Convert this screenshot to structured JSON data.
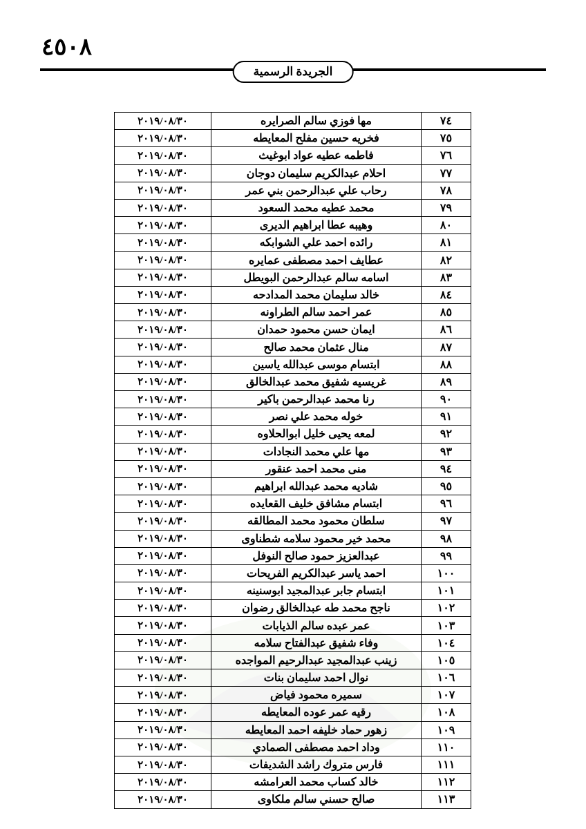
{
  "page_number": "٤٥٠٨",
  "header_title": "الجريدة الرسمية",
  "date_value": "٢٠١٩/٠٨/٣٠",
  "table": {
    "columns": [
      "num",
      "name",
      "date"
    ],
    "rows": [
      {
        "num": "٧٤",
        "name": "مها فوزي سالم الصرايره"
      },
      {
        "num": "٧٥",
        "name": "فخريه حسين مفلح المعايطه"
      },
      {
        "num": "٧٦",
        "name": "فاطمه عطيه عواد ابوغيث"
      },
      {
        "num": "٧٧",
        "name": "احلام عبدالكريم سليمان دوجان"
      },
      {
        "num": "٧٨",
        "name": "رحاب علي عبدالرحمن بني عمر"
      },
      {
        "num": "٧٩",
        "name": "محمد عطيه محمد السعود"
      },
      {
        "num": "٨٠",
        "name": "وهيبه عطا ابراهيم الديرى"
      },
      {
        "num": "٨١",
        "name": "رائده احمد علي الشوابكه"
      },
      {
        "num": "٨٢",
        "name": "عطايف احمد مصطفى عمايره"
      },
      {
        "num": "٨٣",
        "name": "اسامه سالم عبدالرحمن البويطل"
      },
      {
        "num": "٨٤",
        "name": "خالد سليمان محمد المدادحه"
      },
      {
        "num": "٨٥",
        "name": "عمر احمد سالم الطراونه"
      },
      {
        "num": "٨٦",
        "name": "ايمان حسن محمود حمدان"
      },
      {
        "num": "٨٧",
        "name": "منال عثمان محمد صالح"
      },
      {
        "num": "٨٨",
        "name": "ابتسام موسى عبدالله ياسين"
      },
      {
        "num": "٨٩",
        "name": "غريسيه شفيق محمد عبدالخالق"
      },
      {
        "num": "٩٠",
        "name": "رنا محمد عبدالرحمن باكير"
      },
      {
        "num": "٩١",
        "name": "خوله محمد علي نصر"
      },
      {
        "num": "٩٢",
        "name": "لمعه يحيى خليل ابوالحلاوه"
      },
      {
        "num": "٩٣",
        "name": "مها علي محمد النجادات"
      },
      {
        "num": "٩٤",
        "name": "منى محمد احمد عنقور"
      },
      {
        "num": "٩٥",
        "name": "شاديه محمد عبدالله ابراهيم"
      },
      {
        "num": "٩٦",
        "name": "ابتسام مشافق خليف القعايده"
      },
      {
        "num": "٩٧",
        "name": "سلطان محمود محمد المطالقه"
      },
      {
        "num": "٩٨",
        "name": "محمد خير محمود سلامه شطناوى"
      },
      {
        "num": "٩٩",
        "name": "عبدالعزيز حمود صالح النوفل"
      },
      {
        "num": "١٠٠",
        "name": "احمد ياسر عبدالكريم الفريحات"
      },
      {
        "num": "١٠١",
        "name": "ابتسام جابر عبدالمجيد ابوسنينه"
      },
      {
        "num": "١٠٢",
        "name": "ناجح محمد طه عبدالخالق رضوان"
      },
      {
        "num": "١٠٣",
        "name": "عمر عبده سالم الذيابات"
      },
      {
        "num": "١٠٤",
        "name": "وفاء شفيق عبدالفتاح سلامه"
      },
      {
        "num": "١٠٥",
        "name": "زينب عبدالمجيد عبدالرحيم المواجده"
      },
      {
        "num": "١٠٦",
        "name": "نوال احمد سليمان بنات"
      },
      {
        "num": "١٠٧",
        "name": "سميره محمود فياض"
      },
      {
        "num": "١٠٨",
        "name": "رقيه عمر عوده المعايطه"
      },
      {
        "num": "١٠٩",
        "name": "زهور حماد خليفه احمد المعايطه"
      },
      {
        "num": "١١٠",
        "name": "وداد احمد مصطفى الصمادي"
      },
      {
        "num": "١١١",
        "name": "فارس متروك راشد الشديفات"
      },
      {
        "num": "١١٢",
        "name": "خالد كساب محمد العرامشه"
      },
      {
        "num": "١١٣",
        "name": "صالح حسني سالم ملكاوى"
      }
    ]
  },
  "styling": {
    "colors": {
      "background": "#ffffff",
      "text": "#000000",
      "border": "#000000",
      "watermark_gray": "#b8bdb8",
      "watermark_green": "#d4dfc7"
    },
    "font_sizes": {
      "page_number": 34,
      "header_badge": 17,
      "table_cell": 16,
      "date_cell": 15
    },
    "table_dimensions": {
      "total_width": 516,
      "col_num_width": 72,
      "col_name_width": 304,
      "col_date_width": 140,
      "row_height": 25.2
    }
  }
}
